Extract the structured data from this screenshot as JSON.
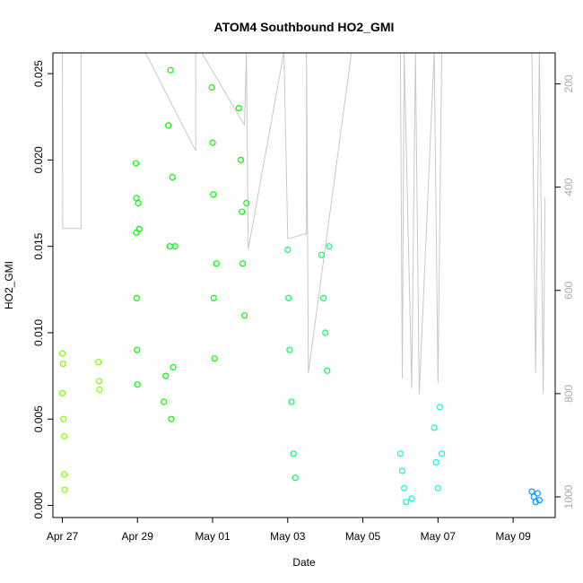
{
  "chart_data": {
    "type": "scatter",
    "title": "ATOM4 Southbound HO2_GMI",
    "xlabel": "Date",
    "ylabel": "HO2_GMI",
    "x_ticks": [
      "Apr 27",
      "Apr 29",
      "May 01",
      "May 03",
      "May 05",
      "May 07",
      "May 09"
    ],
    "x_range": [
      "Apr 26 18:00",
      "May 09 21:00"
    ],
    "y_ticks": [
      "0.000",
      "0.005",
      "0.010",
      "0.015",
      "0.020",
      "0.025"
    ],
    "ylim": [
      -0.0007,
      0.0262
    ],
    "y2_ticks": [
      "200",
      "400",
      "600",
      "800",
      "1000"
    ],
    "y2lim": [
      1040,
      140
    ],
    "grid": false,
    "series": [
      {
        "color": "#7fff00",
        "values": [
          [
            0.0,
            0.0088
          ],
          [
            0.0,
            0.0065
          ],
          [
            0.02,
            0.0082
          ],
          [
            0.03,
            0.005
          ],
          [
            0.05,
            0.004
          ],
          [
            0.05,
            0.0018
          ],
          [
            0.06,
            0.0009
          ],
          [
            0.96,
            0.0083
          ],
          [
            0.98,
            0.0072
          ],
          [
            0.99,
            0.0067
          ]
        ]
      },
      {
        "color": "#00ff00",
        "values": [
          [
            1.96,
            0.0198
          ],
          [
            1.97,
            0.0178
          ],
          [
            1.97,
            0.0158
          ],
          [
            1.98,
            0.012
          ],
          [
            1.99,
            0.009
          ],
          [
            2.0,
            0.007
          ],
          [
            2.02,
            0.0175
          ],
          [
            2.05,
            0.016
          ],
          [
            2.7,
            0.006
          ],
          [
            2.75,
            0.0075
          ],
          [
            2.82,
            0.022
          ],
          [
            2.86,
            0.015
          ],
          [
            2.88,
            0.0252
          ],
          [
            2.9,
            0.005
          ],
          [
            2.93,
            0.019
          ],
          [
            2.95,
            0.008
          ],
          [
            3.0,
            0.015
          ],
          [
            3.98,
            0.0242
          ],
          [
            4.0,
            0.021
          ],
          [
            4.02,
            0.018
          ],
          [
            4.03,
            0.012
          ],
          [
            4.05,
            0.0085
          ],
          [
            4.1,
            0.014
          ],
          [
            4.7,
            0.023
          ],
          [
            4.75,
            0.02
          ],
          [
            4.78,
            0.017
          ],
          [
            4.8,
            0.014
          ],
          [
            4.85,
            0.011
          ],
          [
            4.9,
            0.0175
          ]
        ]
      },
      {
        "color": "#00ff66",
        "values": [
          [
            6.0,
            0.0148
          ],
          [
            6.02,
            0.012
          ],
          [
            6.05,
            0.009
          ],
          [
            6.1,
            0.006
          ],
          [
            6.15,
            0.003
          ],
          [
            6.2,
            0.0016
          ],
          [
            6.9,
            0.0145
          ],
          [
            6.95,
            0.012
          ],
          [
            7.0,
            0.01
          ],
          [
            7.05,
            0.0078
          ],
          [
            7.1,
            0.015
          ]
        ]
      },
      {
        "color": "#00ffdd",
        "values": [
          [
            9.0,
            0.003
          ],
          [
            9.05,
            0.002
          ],
          [
            9.1,
            0.001
          ],
          [
            9.15,
            0.0002
          ],
          [
            9.3,
            0.0004
          ],
          [
            9.9,
            0.0045
          ],
          [
            9.95,
            0.0025
          ],
          [
            10.0,
            0.001
          ],
          [
            10.05,
            0.0057
          ],
          [
            10.1,
            0.003
          ]
        ]
      },
      {
        "color": "#0099ff",
        "values": [
          [
            12.5,
            0.0008
          ],
          [
            12.55,
            0.0005
          ],
          [
            12.6,
            0.0002
          ],
          [
            12.65,
            0.0007
          ],
          [
            12.7,
            0.0003
          ]
        ]
      }
    ],
    "altitude_trace": {
      "color": "#c8c8c8",
      "points": [
        [
          0.0,
          138
        ],
        [
          0.01,
          480
        ],
        [
          0.5,
          480
        ],
        [
          0.5,
          138
        ],
        [
          2.2,
          138
        ],
        [
          3.55,
          330
        ],
        [
          3.55,
          138
        ],
        [
          3.7,
          138
        ],
        [
          4.85,
          280
        ],
        [
          4.9,
          138
        ],
        [
          4.95,
          520
        ],
        [
          5.9,
          138
        ],
        [
          6.0,
          500
        ],
        [
          6.5,
          490
        ],
        [
          6.5,
          138
        ],
        [
          6.55,
          760
        ],
        [
          7.7,
          138
        ],
        [
          9.0,
          138
        ],
        [
          9.05,
          770
        ],
        [
          9.1,
          138
        ],
        [
          9.3,
          790
        ],
        [
          9.4,
          138
        ],
        [
          9.5,
          800
        ],
        [
          9.9,
          138
        ],
        [
          10.0,
          780
        ],
        [
          10.1,
          138
        ],
        [
          12.5,
          138
        ],
        [
          12.6,
          760
        ],
        [
          12.7,
          138
        ],
        [
          12.8,
          800
        ],
        [
          12.85,
          420
        ]
      ]
    }
  }
}
